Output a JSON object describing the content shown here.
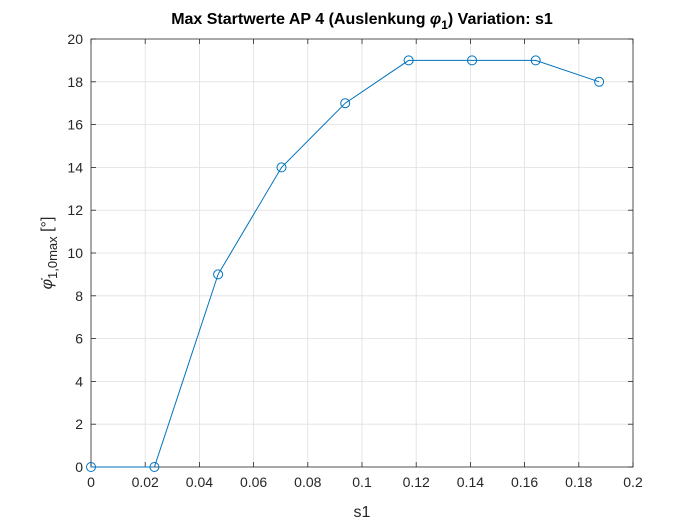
{
  "chart_data": {
    "type": "line",
    "title_prefix": "Max Startwerte AP 4 (Auslenkung ",
    "title_symbol": "φ",
    "title_symbol_sub": "1",
    "title_suffix": ")  Variation: s1",
    "xlabel": "s1",
    "ylabel_symbol": "φ̇",
    "ylabel_sub": "1,0max",
    "ylabel_unit": " [°]",
    "xlim": [
      0,
      0.2
    ],
    "ylim": [
      0,
      20
    ],
    "xticks": [
      0,
      0.02,
      0.04,
      0.06,
      0.08,
      0.1,
      0.12,
      0.14,
      0.16,
      0.18,
      0.2
    ],
    "xtick_labels": [
      "0",
      "0.02",
      "0.04",
      "0.06",
      "0.08",
      "0.1",
      "0.12",
      "0.14",
      "0.16",
      "0.18",
      "0.2"
    ],
    "yticks": [
      0,
      2,
      4,
      6,
      8,
      10,
      12,
      14,
      16,
      18,
      20
    ],
    "ytick_labels": [
      "0",
      "2",
      "4",
      "6",
      "8",
      "10",
      "12",
      "14",
      "16",
      "18",
      "20"
    ],
    "grid": true,
    "series": [
      {
        "marker": "circle",
        "color": "#0072BD",
        "x": [
          0,
          0.0234,
          0.0469,
          0.0703,
          0.0938,
          0.1172,
          0.1406,
          0.1641,
          0.1875
        ],
        "y": [
          0,
          0,
          9,
          14,
          17,
          19,
          19,
          19,
          18
        ]
      }
    ]
  }
}
